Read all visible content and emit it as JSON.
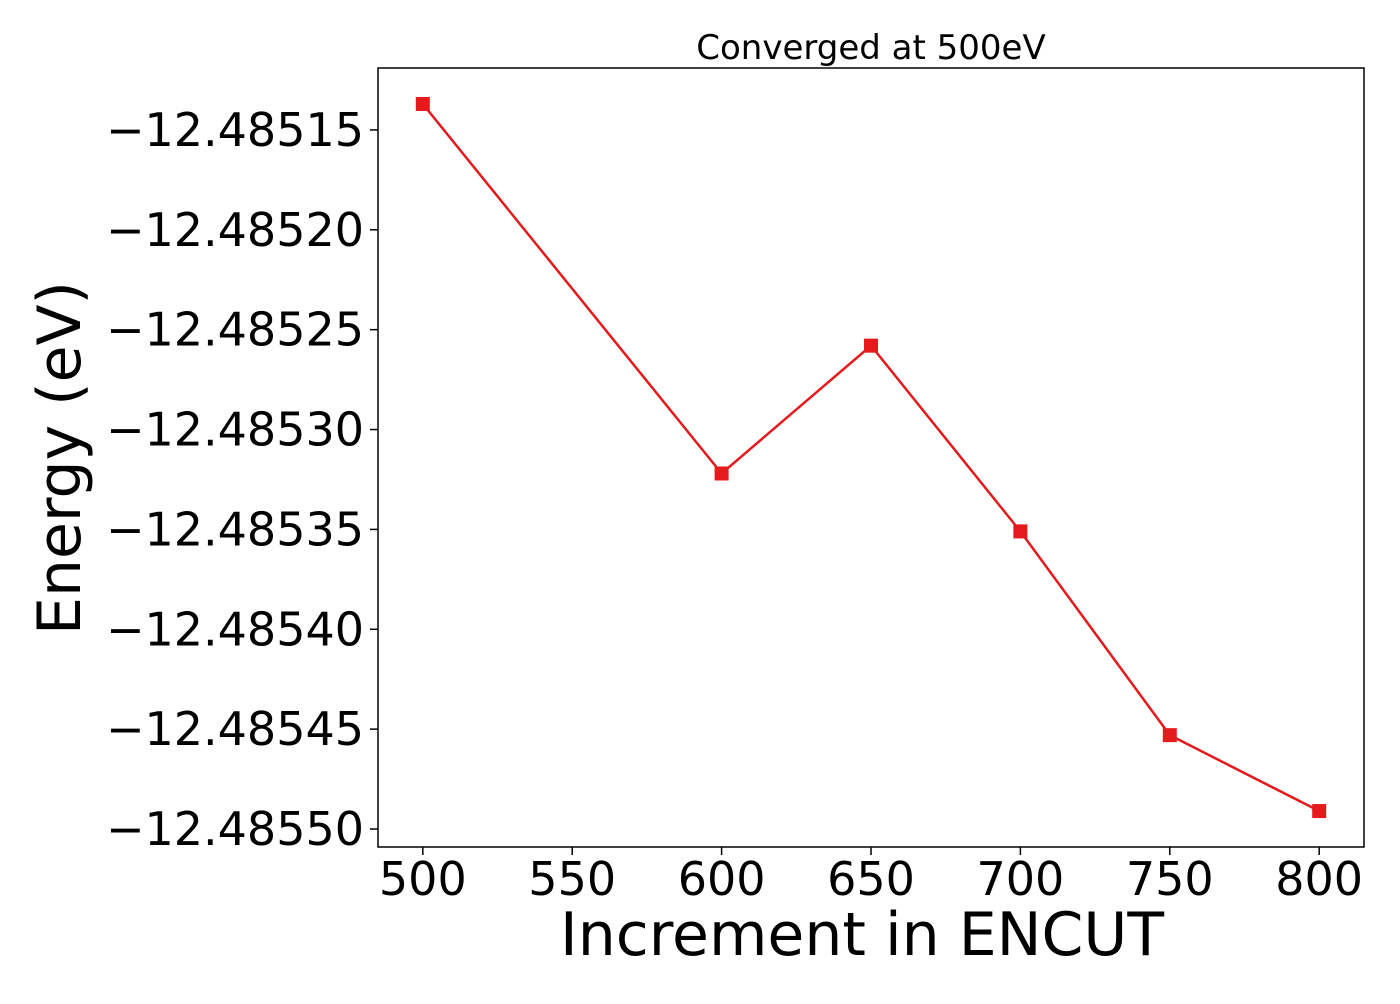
{
  "chart_data": {
    "type": "line",
    "title": "Converged at 500eV",
    "xlabel": "Increment in ENCUT",
    "ylabel": "Energy (eV)",
    "x": [
      500,
      600,
      650,
      700,
      750,
      800
    ],
    "series": [
      {
        "values": [
          -12.485137,
          -12.485322,
          -12.485258,
          -12.485351,
          -12.485453,
          -12.485491
        ],
        "color": "#e41a1c",
        "marker": "square"
      }
    ],
    "xlim": [
      485,
      815
    ],
    "ylim": [
      -12.485509,
      -12.485119
    ],
    "xticks": [
      500,
      550,
      600,
      650,
      700,
      750,
      800
    ],
    "xtick_labels": [
      "500",
      "550",
      "600",
      "650",
      "700",
      "750",
      "800"
    ],
    "yticks": [
      -12.48515,
      -12.4852,
      -12.48525,
      -12.4853,
      -12.48535,
      -12.4854,
      -12.48545,
      -12.4855
    ],
    "ytick_labels": [
      "−12.48515",
      "−12.48520",
      "−12.48525",
      "−12.48530",
      "−12.48535",
      "−12.48540",
      "−12.48545",
      "−12.48550"
    ],
    "grid": false,
    "legend": "none"
  }
}
